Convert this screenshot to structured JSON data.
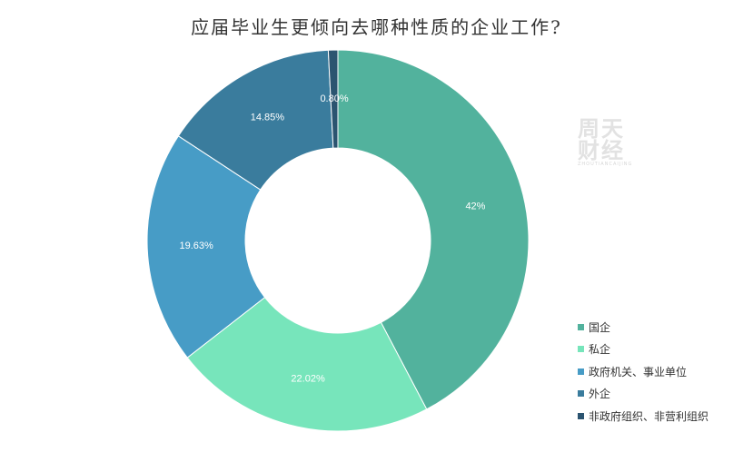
{
  "chart_data": {
    "type": "pie",
    "donut": true,
    "title": "应届毕业生更倾向去哪种性质的企业工作?",
    "categories": [
      "国企",
      "私企",
      "政府机关、事业单位",
      "外企",
      "非政府组织、非营利组织"
    ],
    "values": [
      42,
      22.02,
      19.63,
      14.85,
      0.8
    ],
    "value_labels": [
      "42%",
      "22.02%",
      "19.63%",
      "14.85%",
      "0.80%"
    ],
    "colors": [
      "#52b29d",
      "#77e5bb",
      "#479cc6",
      "#3a7c9d",
      "#2b5470"
    ],
    "legend_position": "bottom-right"
  },
  "watermark": {
    "line1": "周天",
    "line2": "财经",
    "line3": "ZHOUTIANCAIJING"
  }
}
